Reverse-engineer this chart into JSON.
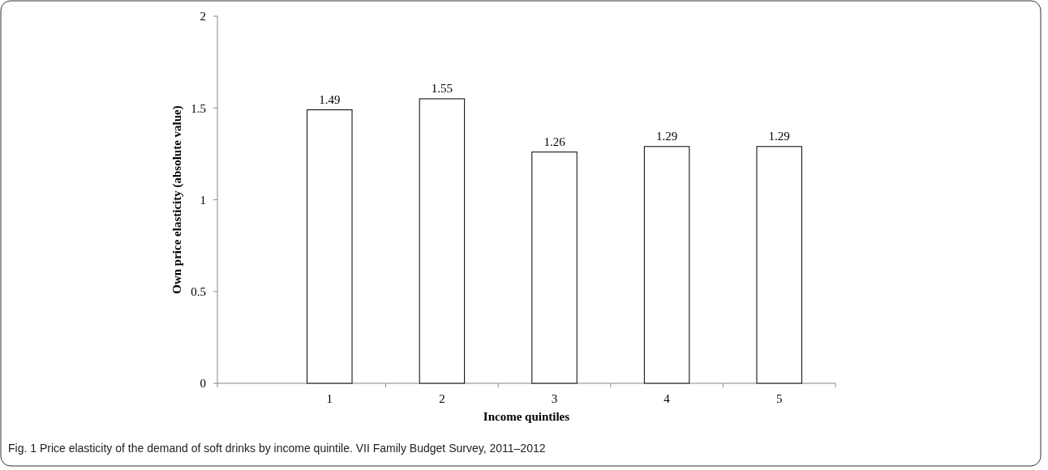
{
  "chart_data": {
    "type": "bar",
    "xlabel": "Income quintiles",
    "ylabel": "Own price elasticity (absolute value)",
    "categories": [
      "1",
      "2",
      "3",
      "4",
      "5"
    ],
    "values": [
      1.49,
      1.55,
      1.26,
      1.29,
      1.29
    ],
    "color": "#ffffff",
    "ylim": [
      0,
      2
    ],
    "yticks": [
      0,
      0.5,
      1,
      1.5,
      2
    ],
    "grid": false,
    "data_labels": true,
    "annotations": [
      "Fig. 1 Price elasticity of the demand of soft drinks by income quintile. VII Family Budget Survey, 2011–2012"
    ]
  }
}
